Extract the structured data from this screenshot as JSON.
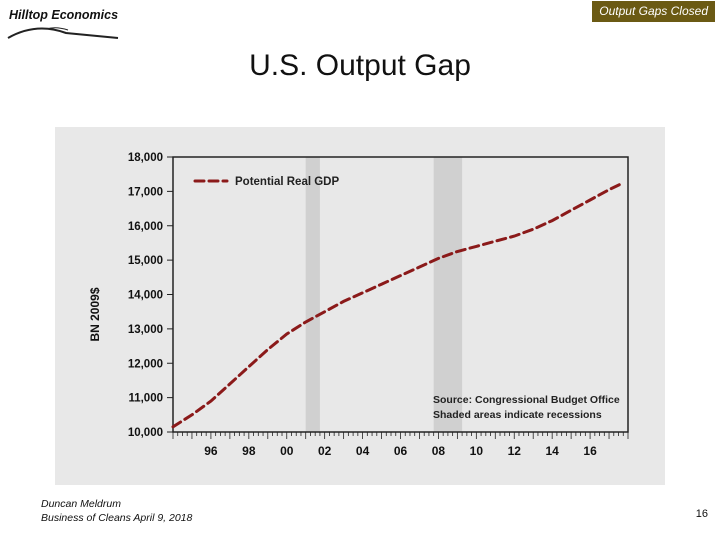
{
  "header": {
    "logo_text": "Hilltop Economics",
    "tag": "Output Gaps Closed",
    "tag_color": "#6b5a14",
    "title": "U.S. Output Gap"
  },
  "footer": {
    "author": "Duncan Meldrum",
    "event": "Business of Cleans April 9, 2018",
    "page": "16"
  },
  "chart_data": {
    "type": "line",
    "title": "",
    "xlabel": "",
    "ylabel": "BN 2009$",
    "xlim": [
      1994.0,
      2018.0
    ],
    "ylim": [
      10000,
      18000
    ],
    "ytick_values": [
      10000,
      11000,
      12000,
      13000,
      14000,
      15000,
      16000,
      17000,
      18000
    ],
    "ytick_labels": [
      "10,000",
      "11,000",
      "12,000",
      "13,000",
      "14,000",
      "15,000",
      "16,000",
      "17,000",
      "18,000"
    ],
    "xtick_values": [
      1996,
      1998,
      2000,
      2002,
      2004,
      2006,
      2008,
      2010,
      2012,
      2014,
      2016
    ],
    "xtick_labels": [
      "96",
      "98",
      "00",
      "02",
      "04",
      "06",
      "08",
      "10",
      "12",
      "14",
      "16"
    ],
    "recessions": [
      [
        2001.0,
        2001.75
      ],
      [
        2007.75,
        2009.25
      ]
    ],
    "series": [
      {
        "name": "Potential Real GDP",
        "color": "#8b1a1a",
        "style": "dashed",
        "points": [
          [
            1994.0,
            10150
          ],
          [
            1995.0,
            10500
          ],
          [
            1996.0,
            10900
          ],
          [
            1997.0,
            11400
          ],
          [
            1998.0,
            11900
          ],
          [
            1999.0,
            12400
          ],
          [
            2000.0,
            12850
          ],
          [
            2001.0,
            13200
          ],
          [
            2002.0,
            13500
          ],
          [
            2003.0,
            13800
          ],
          [
            2004.0,
            14050
          ],
          [
            2005.0,
            14300
          ],
          [
            2006.0,
            14550
          ],
          [
            2007.0,
            14800
          ],
          [
            2008.0,
            15050
          ],
          [
            2009.0,
            15250
          ],
          [
            2010.0,
            15400
          ],
          [
            2011.0,
            15550
          ],
          [
            2012.0,
            15700
          ],
          [
            2013.0,
            15900
          ],
          [
            2014.0,
            16150
          ],
          [
            2015.0,
            16450
          ],
          [
            2016.0,
            16750
          ],
          [
            2017.0,
            17050
          ],
          [
            2017.75,
            17250
          ]
        ]
      }
    ],
    "legend": "top-left",
    "annotations": [
      "Source: Congressional Budget Office",
      "Shaded areas indicate recessions"
    ],
    "grid": false
  }
}
